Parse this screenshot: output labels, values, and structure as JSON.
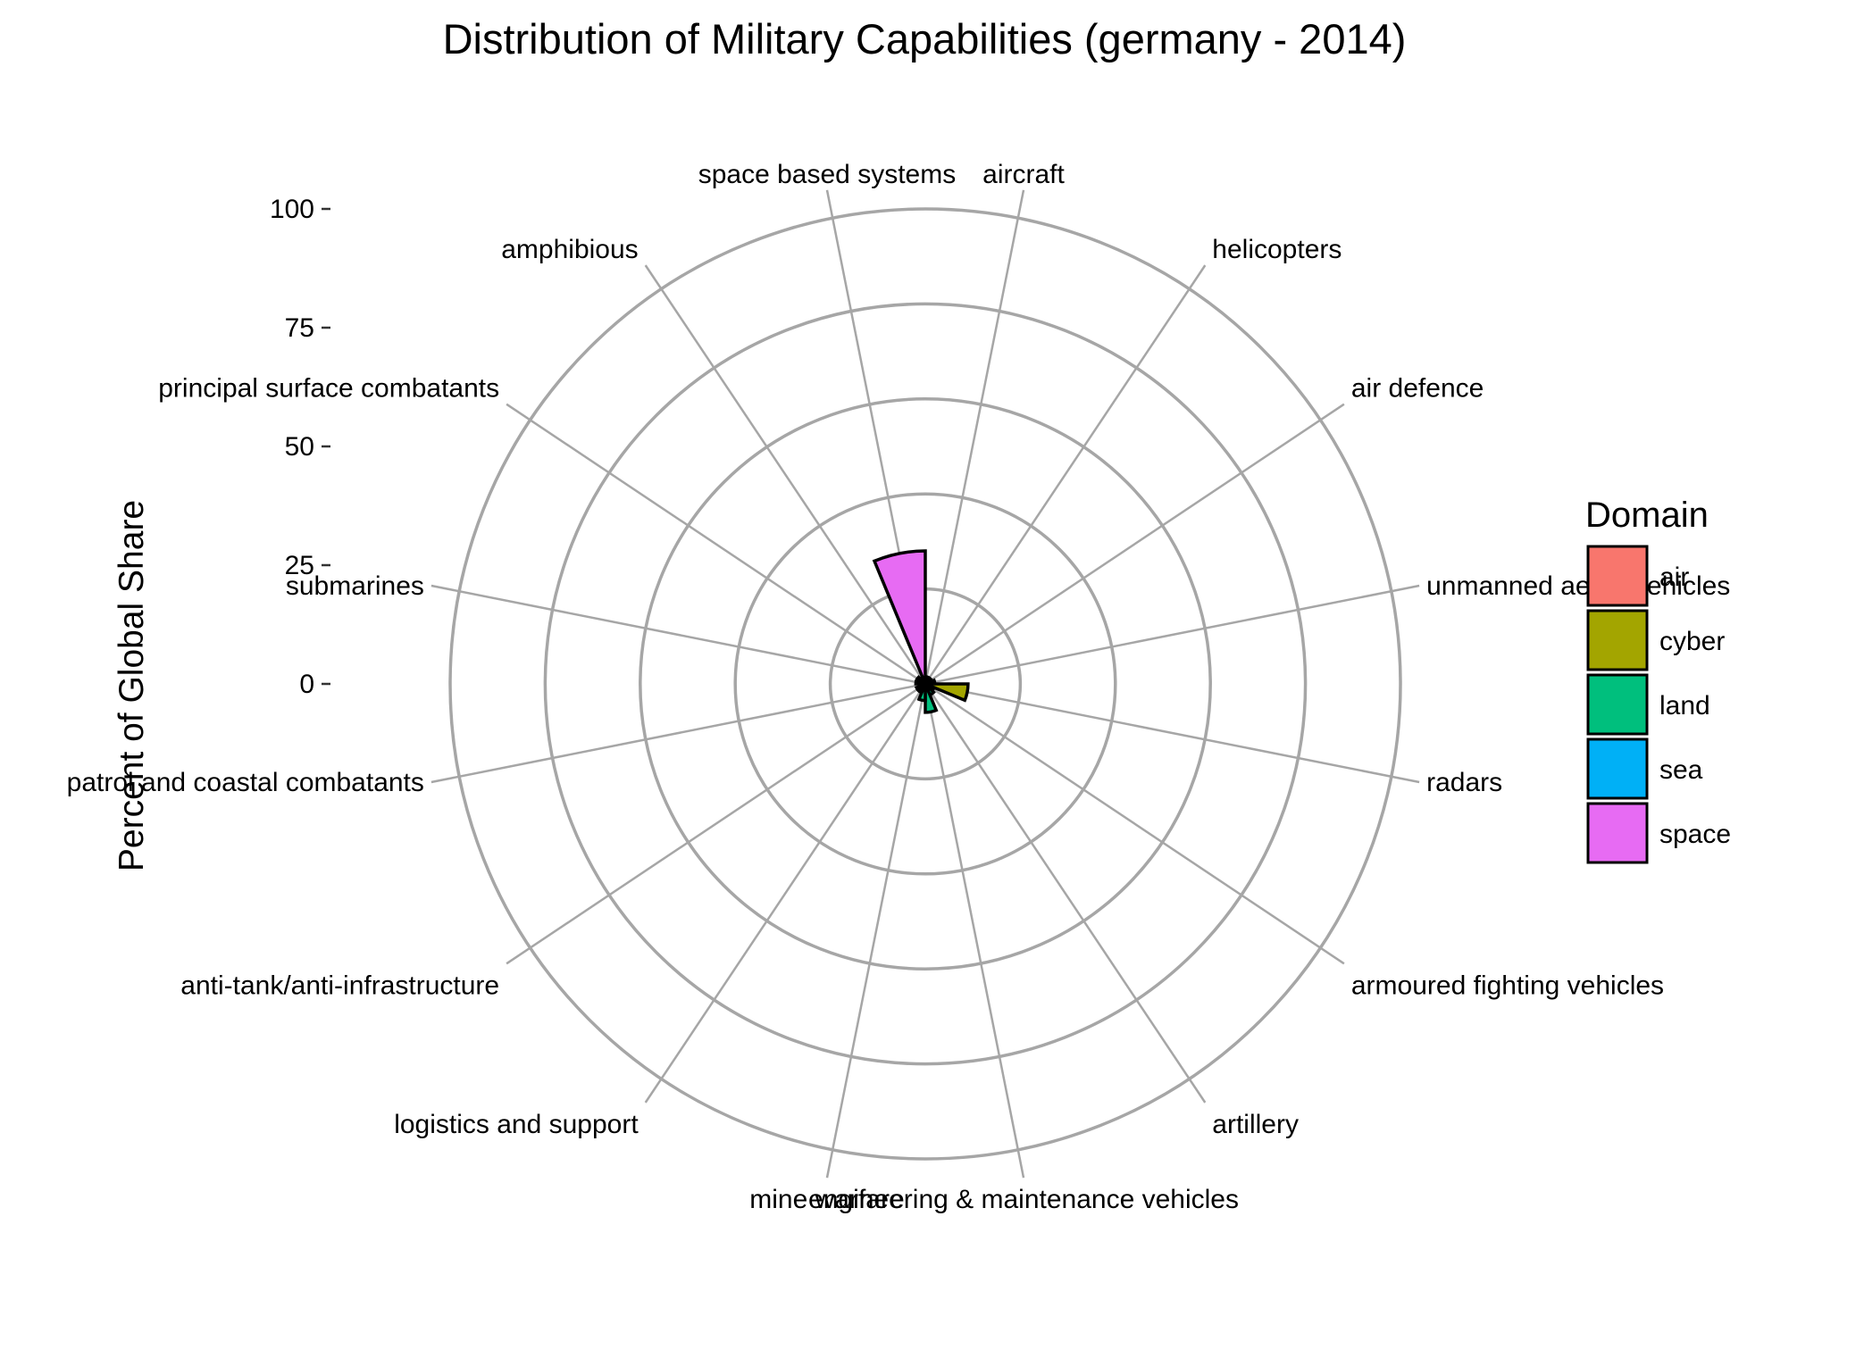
{
  "chart_data": {
    "type": "polar-bar",
    "title": "Distribution of Military Capabilities (germany - 2014)",
    "ylabel": "Percent of Global Share",
    "ylim": [
      0,
      100
    ],
    "yticks": [
      0,
      25,
      50,
      75,
      100
    ],
    "categories": [
      "aircraft",
      "helicopters",
      "air defence",
      "unmanned aerial vehicles",
      "radars",
      "armoured fighting vehicles",
      "artillery",
      "engineering & maintenance vehicles",
      "mine warfare",
      "logistics and support",
      "anti-tank/anti-infrastructure",
      "patrol and coastal combatants",
      "submarines",
      "principal surface combatants",
      "amphibious",
      "space based systems"
    ],
    "category_domain": [
      "air",
      "air",
      "air",
      "air",
      "cyber",
      "land",
      "land",
      "land",
      "land",
      "land",
      "land",
      "sea",
      "sea",
      "sea",
      "sea",
      "space"
    ],
    "values": [
      1.5,
      1.5,
      1.5,
      2,
      9,
      2,
      2.5,
      6,
      3.5,
      2,
      2,
      1,
      2,
      2,
      1.5,
      28
    ],
    "legend": {
      "title": "Domain",
      "position": "right",
      "entries": [
        {
          "name": "air",
          "color": "#F8766D"
        },
        {
          "name": "cyber",
          "color": "#A3A500"
        },
        {
          "name": "land",
          "color": "#00BF7D"
        },
        {
          "name": "sea",
          "color": "#00B0F6"
        },
        {
          "name": "space",
          "color": "#E76BF3"
        }
      ]
    },
    "grid": true
  }
}
